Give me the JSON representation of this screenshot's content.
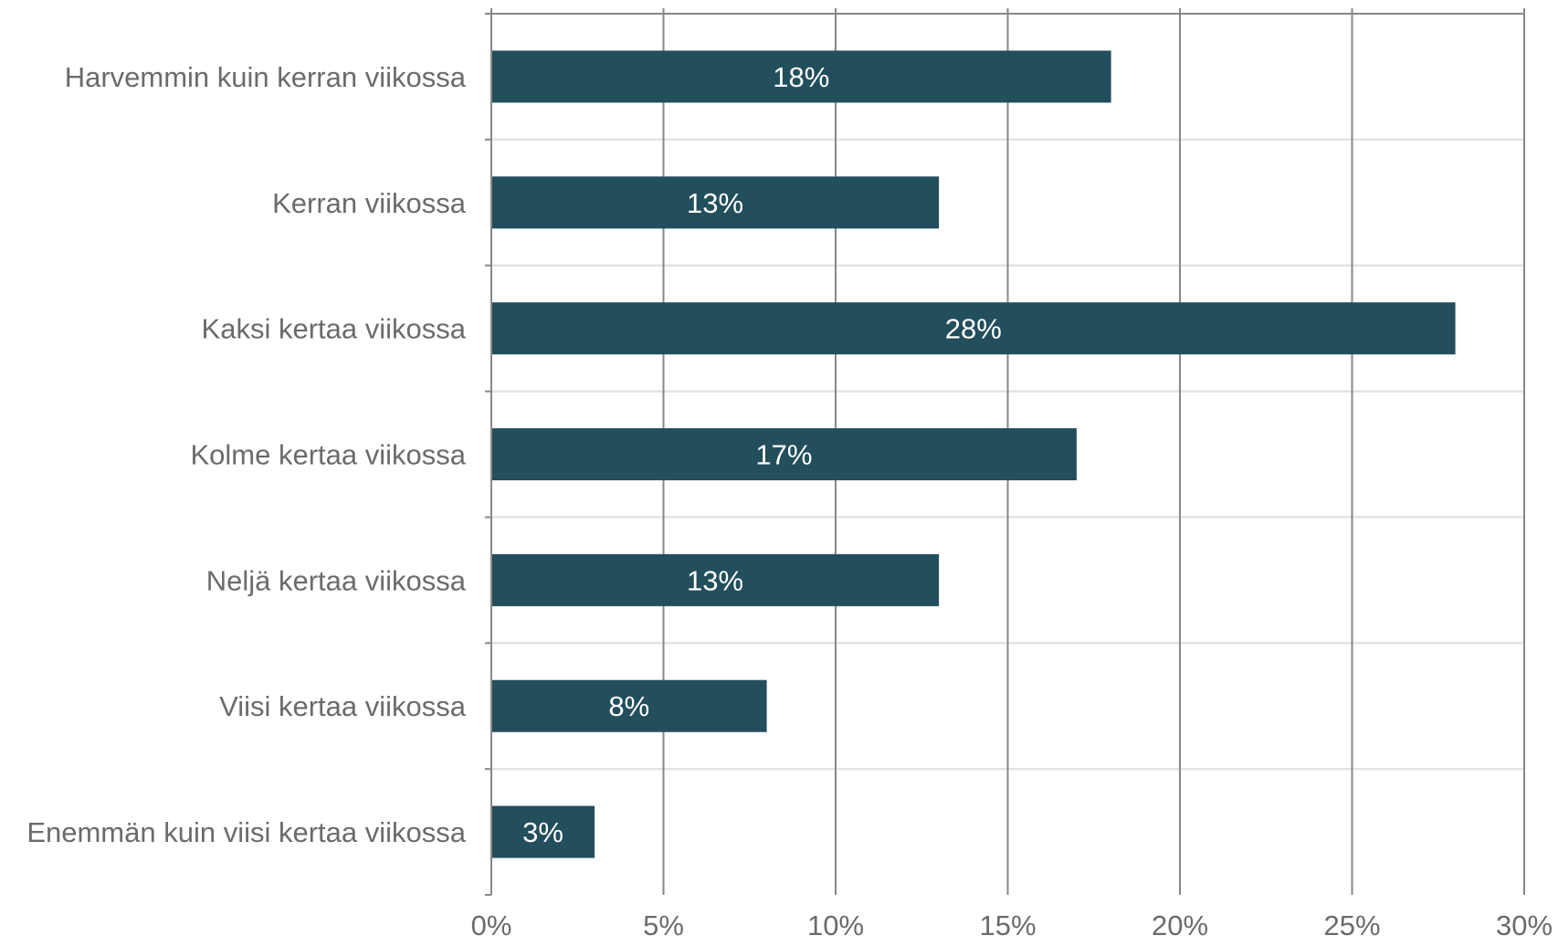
{
  "chart_data": {
    "type": "bar",
    "orientation": "horizontal",
    "categories": [
      "Harvemmin kuin kerran viikossa",
      "Kerran viikossa",
      "Kaksi kertaa viikossa",
      "Kolme kertaa viikossa",
      "Neljä kertaa viikossa",
      "Viisi kertaa viikossa",
      "Enemmän kuin viisi kertaa viikossa"
    ],
    "values": [
      18,
      13,
      28,
      17,
      13,
      8,
      3
    ],
    "data_labels": [
      "18%",
      "13%",
      "28%",
      "17%",
      "13%",
      "8%",
      "3%"
    ],
    "x_ticks": [
      0,
      5,
      10,
      15,
      20,
      25,
      30
    ],
    "x_tick_labels": [
      "0%",
      "5%",
      "10%",
      "15%",
      "20%",
      "25%",
      "30%"
    ],
    "xlim": [
      0,
      30
    ],
    "title": "",
    "xlabel": "",
    "ylabel": "",
    "grid": "vertical",
    "legend": "none",
    "colors": {
      "bar": "#234e5c",
      "grid": "#888888",
      "separator": "#e3e3e3",
      "axis": "#888888",
      "text": "#6b6b6b",
      "data_label": "#ffffff"
    }
  }
}
